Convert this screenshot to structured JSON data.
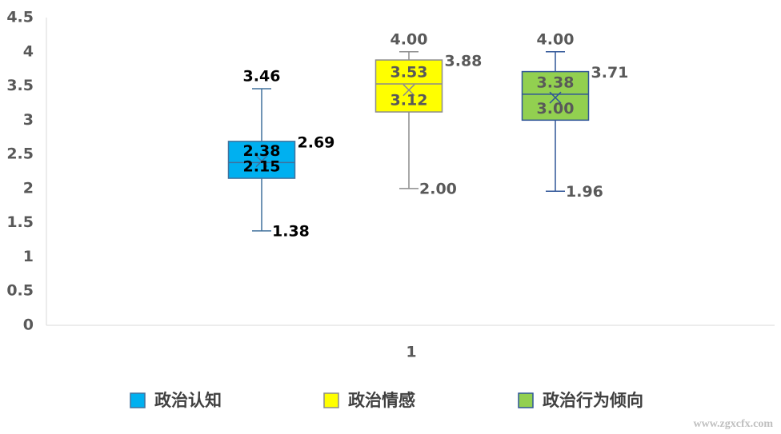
{
  "chart_data": {
    "type": "box",
    "categories": [
      "1"
    ],
    "ylim": [
      0,
      4.5
    ],
    "yticks": [
      0,
      0.5,
      1,
      1.5,
      2,
      2.5,
      3,
      3.5,
      4,
      4.5
    ],
    "legend": "bottom",
    "watermark": "www.zgxcfx.com",
    "series": [
      {
        "name": "政治认知",
        "color": "#00b0f0",
        "stroke": "#41719c",
        "label_color": "#000000",
        "values": [
          1.38,
          2.15,
          2.38,
          2.69,
          3.46
        ],
        "value_labels": [
          "1.38",
          "2.15",
          "2.38",
          "2.69",
          "3.46"
        ],
        "mean": 2.4
      },
      {
        "name": "政治情感",
        "color": "#ffff00",
        "stroke": "#8c8c8c",
        "label_color": "#595959",
        "values": [
          2.0,
          3.12,
          3.53,
          3.88,
          4.0
        ],
        "value_labels": [
          "2.00",
          "3.12",
          "3.53",
          "3.88",
          "4.00"
        ],
        "mean": 3.44
      },
      {
        "name": "政治行为倾向",
        "color": "#92d050",
        "stroke": "#2f5597",
        "label_color": "#595959",
        "values": [
          1.96,
          3.0,
          3.38,
          3.71,
          4.0
        ],
        "value_labels": [
          "1.96",
          "3.00",
          "3.38",
          "3.71",
          "4.00"
        ],
        "mean": 3.33
      }
    ]
  }
}
